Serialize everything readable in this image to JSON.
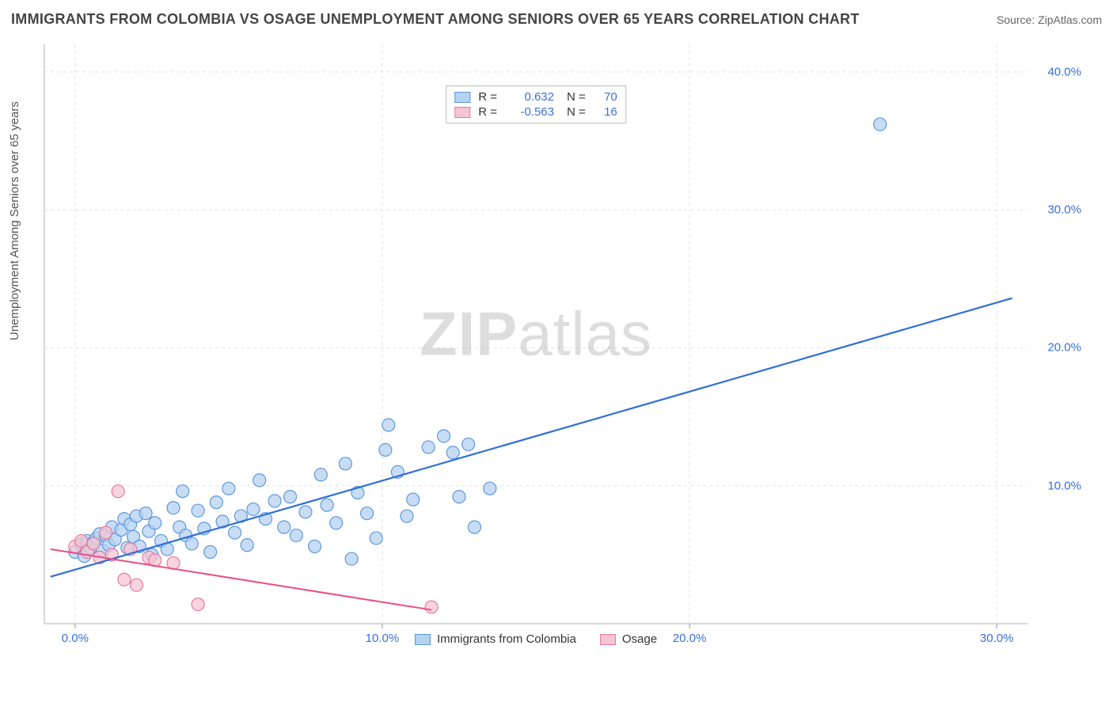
{
  "title": "IMMIGRANTS FROM COLOMBIA VS OSAGE UNEMPLOYMENT AMONG SENIORS OVER 65 YEARS CORRELATION CHART",
  "source_label": "Source: ",
  "source_name": "ZipAtlas.com",
  "y_axis_label": "Unemployment Among Seniors over 65 years",
  "watermark": {
    "bold": "ZIP",
    "rest": "atlas"
  },
  "chart": {
    "type": "scatter",
    "background_color": "#ffffff",
    "plot_border_color": "#cccccc",
    "grid_color": "#e2e2e2",
    "grid_dash": "4,4",
    "xlim": [
      -1.0,
      31.0
    ],
    "ylim": [
      0.0,
      42.0
    ],
    "x_ticks": [
      0.0,
      10.0,
      20.0,
      30.0
    ],
    "x_tick_labels": [
      "0.0%",
      "10.0%",
      "20.0%",
      "30.0%"
    ],
    "x_tick_color": "#3b6fd9",
    "y_ticks": [
      10.0,
      20.0,
      30.0,
      40.0
    ],
    "y_tick_labels": [
      "10.0%",
      "20.0%",
      "30.0%",
      "40.0%"
    ],
    "y_tick_color": "#3b6fd9",
    "tick_fontsize": 15,
    "series": [
      {
        "name": "Immigrants from Colombia",
        "marker_fill": "#b6d2f2",
        "marker_stroke": "#5d98de",
        "marker_opacity": 0.75,
        "marker_radius": 8,
        "line_color": "#2f6fd6",
        "line_width": 2.2,
        "R": 0.632,
        "N": 70,
        "r_color": "#3b6fd9",
        "reg_x": [
          -0.8,
          30.5
        ],
        "reg_y": [
          3.4,
          23.6
        ],
        "points": [
          [
            0.0,
            5.2
          ],
          [
            0.2,
            5.8
          ],
          [
            0.3,
            4.9
          ],
          [
            0.4,
            6.0
          ],
          [
            0.5,
            5.5
          ],
          [
            0.6,
            5.9
          ],
          [
            0.7,
            6.2
          ],
          [
            0.8,
            6.5
          ],
          [
            0.9,
            5.3
          ],
          [
            1.0,
            6.4
          ],
          [
            1.1,
            5.7
          ],
          [
            1.2,
            7.0
          ],
          [
            1.3,
            6.1
          ],
          [
            1.5,
            6.8
          ],
          [
            1.6,
            7.6
          ],
          [
            1.7,
            5.5
          ],
          [
            1.8,
            7.2
          ],
          [
            1.9,
            6.3
          ],
          [
            2.0,
            7.8
          ],
          [
            2.1,
            5.6
          ],
          [
            2.3,
            8.0
          ],
          [
            2.4,
            6.7
          ],
          [
            2.5,
            5.0
          ],
          [
            2.6,
            7.3
          ],
          [
            2.8,
            6.0
          ],
          [
            3.0,
            5.4
          ],
          [
            3.2,
            8.4
          ],
          [
            3.4,
            7.0
          ],
          [
            3.5,
            9.6
          ],
          [
            3.6,
            6.4
          ],
          [
            3.8,
            5.8
          ],
          [
            4.0,
            8.2
          ],
          [
            4.2,
            6.9
          ],
          [
            4.4,
            5.2
          ],
          [
            4.6,
            8.8
          ],
          [
            4.8,
            7.4
          ],
          [
            5.0,
            9.8
          ],
          [
            5.2,
            6.6
          ],
          [
            5.4,
            7.8
          ],
          [
            5.6,
            5.7
          ],
          [
            5.8,
            8.3
          ],
          [
            6.0,
            10.4
          ],
          [
            6.2,
            7.6
          ],
          [
            6.5,
            8.9
          ],
          [
            6.8,
            7.0
          ],
          [
            7.0,
            9.2
          ],
          [
            7.2,
            6.4
          ],
          [
            7.5,
            8.1
          ],
          [
            7.8,
            5.6
          ],
          [
            8.0,
            10.8
          ],
          [
            8.2,
            8.6
          ],
          [
            8.5,
            7.3
          ],
          [
            8.8,
            11.6
          ],
          [
            9.0,
            4.7
          ],
          [
            9.2,
            9.5
          ],
          [
            9.5,
            8.0
          ],
          [
            9.8,
            6.2
          ],
          [
            10.1,
            12.6
          ],
          [
            10.2,
            14.4
          ],
          [
            10.5,
            11.0
          ],
          [
            10.8,
            7.8
          ],
          [
            11.0,
            9.0
          ],
          [
            11.5,
            12.8
          ],
          [
            12.0,
            13.6
          ],
          [
            12.3,
            12.4
          ],
          [
            12.5,
            9.2
          ],
          [
            12.8,
            13.0
          ],
          [
            13.0,
            7.0
          ],
          [
            13.5,
            9.8
          ],
          [
            26.2,
            36.2
          ]
        ]
      },
      {
        "name": "Osage",
        "marker_fill": "#f6c5d3",
        "marker_stroke": "#e77aa0",
        "marker_opacity": 0.75,
        "marker_radius": 8,
        "line_color": "#e94e86",
        "line_width": 2.0,
        "R": -0.563,
        "N": 16,
        "r_color": "#3b6fd9",
        "reg_x": [
          -0.8,
          11.6
        ],
        "reg_y": [
          5.4,
          1.0
        ],
        "points": [
          [
            0.0,
            5.6
          ],
          [
            0.2,
            6.0
          ],
          [
            0.4,
            5.2
          ],
          [
            0.6,
            5.8
          ],
          [
            0.8,
            4.8
          ],
          [
            1.0,
            6.6
          ],
          [
            1.2,
            5.0
          ],
          [
            1.4,
            9.6
          ],
          [
            1.6,
            3.2
          ],
          [
            1.8,
            5.4
          ],
          [
            2.0,
            2.8
          ],
          [
            2.4,
            4.8
          ],
          [
            2.6,
            4.6
          ],
          [
            3.2,
            4.4
          ],
          [
            4.0,
            1.4
          ],
          [
            11.6,
            1.2
          ]
        ]
      }
    ],
    "legend_bottom": [
      {
        "label": "Immigrants from Colombia",
        "fill": "#b6d2f2",
        "stroke": "#5d98de"
      },
      {
        "label": "Osage",
        "fill": "#f6c5d3",
        "stroke": "#e77aa0"
      }
    ]
  }
}
